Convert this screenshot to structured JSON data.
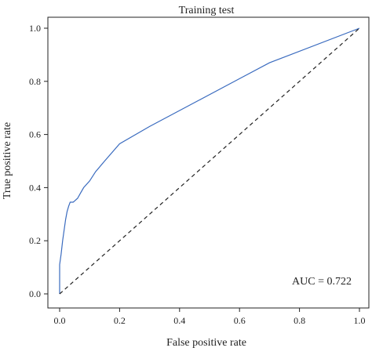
{
  "chart_data": {
    "type": "line",
    "title": "Training test",
    "xlabel": "False positive rate",
    "ylabel": "True positive rate",
    "xlim": [
      0,
      1
    ],
    "ylim": [
      0,
      1
    ],
    "x_ticks": [
      "0.0",
      "0.2",
      "0.4",
      "0.6",
      "0.8",
      "1.0"
    ],
    "y_ticks": [
      "0.0",
      "0.2",
      "0.4",
      "0.6",
      "0.8",
      "1.0"
    ],
    "grid": false,
    "legend": "none",
    "series": [
      {
        "color": "#3a6bbf",
        "style": "solid",
        "x": [
          0.0,
          0.0,
          0.005,
          0.01,
          0.02,
          0.025,
          0.03,
          0.035,
          0.045,
          0.05,
          0.06,
          0.07,
          0.08,
          0.1,
          0.12,
          0.15,
          0.2,
          0.3,
          0.45,
          0.6,
          0.7,
          1.0
        ],
        "y": [
          0.0,
          0.11,
          0.15,
          0.2,
          0.28,
          0.31,
          0.33,
          0.345,
          0.345,
          0.35,
          0.36,
          0.38,
          0.4,
          0.425,
          0.46,
          0.5,
          0.565,
          0.63,
          0.72,
          0.81,
          0.87,
          1.0
        ]
      },
      {
        "color": "#222222",
        "style": "dashed",
        "x": [
          0,
          1
        ],
        "y": [
          0,
          1
        ]
      }
    ],
    "annotation": "AUC = 0.722"
  }
}
